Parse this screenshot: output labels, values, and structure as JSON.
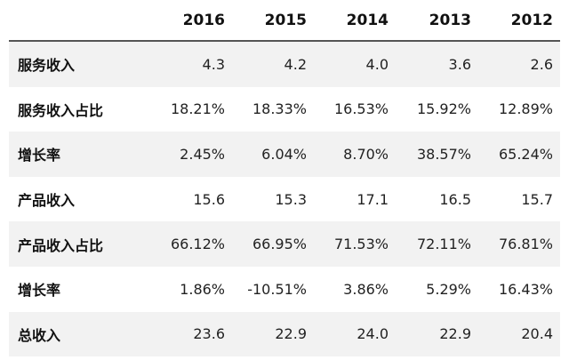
{
  "table": {
    "header": [
      "2016",
      "2015",
      "2014",
      "2013",
      "2012"
    ],
    "rows": [
      [
        "服务收入",
        "4.3",
        "4.2",
        "4.0",
        "3.6",
        "2.6"
      ],
      [
        "服务收入占比",
        "18.21%",
        "18.33%",
        "16.53%",
        "15.92%",
        "12.89%"
      ],
      [
        "增长率",
        "2.45%",
        "6.04%",
        "8.70%",
        "38.57%",
        "65.24%"
      ],
      [
        "产品收入",
        "15.6",
        "15.3",
        "17.1",
        "16.5",
        "15.7"
      ],
      [
        "产品收入占比",
        "66.12%",
        "66.95%",
        "71.53%",
        "72.11%",
        "76.81%"
      ],
      [
        "增长率",
        "1.86%",
        "-10.51%",
        "3.86%",
        "5.29%",
        "16.43%"
      ],
      [
        "总收入",
        "23.6",
        "22.9",
        "24.0",
        "22.9",
        "20.4"
      ]
    ]
  }
}
